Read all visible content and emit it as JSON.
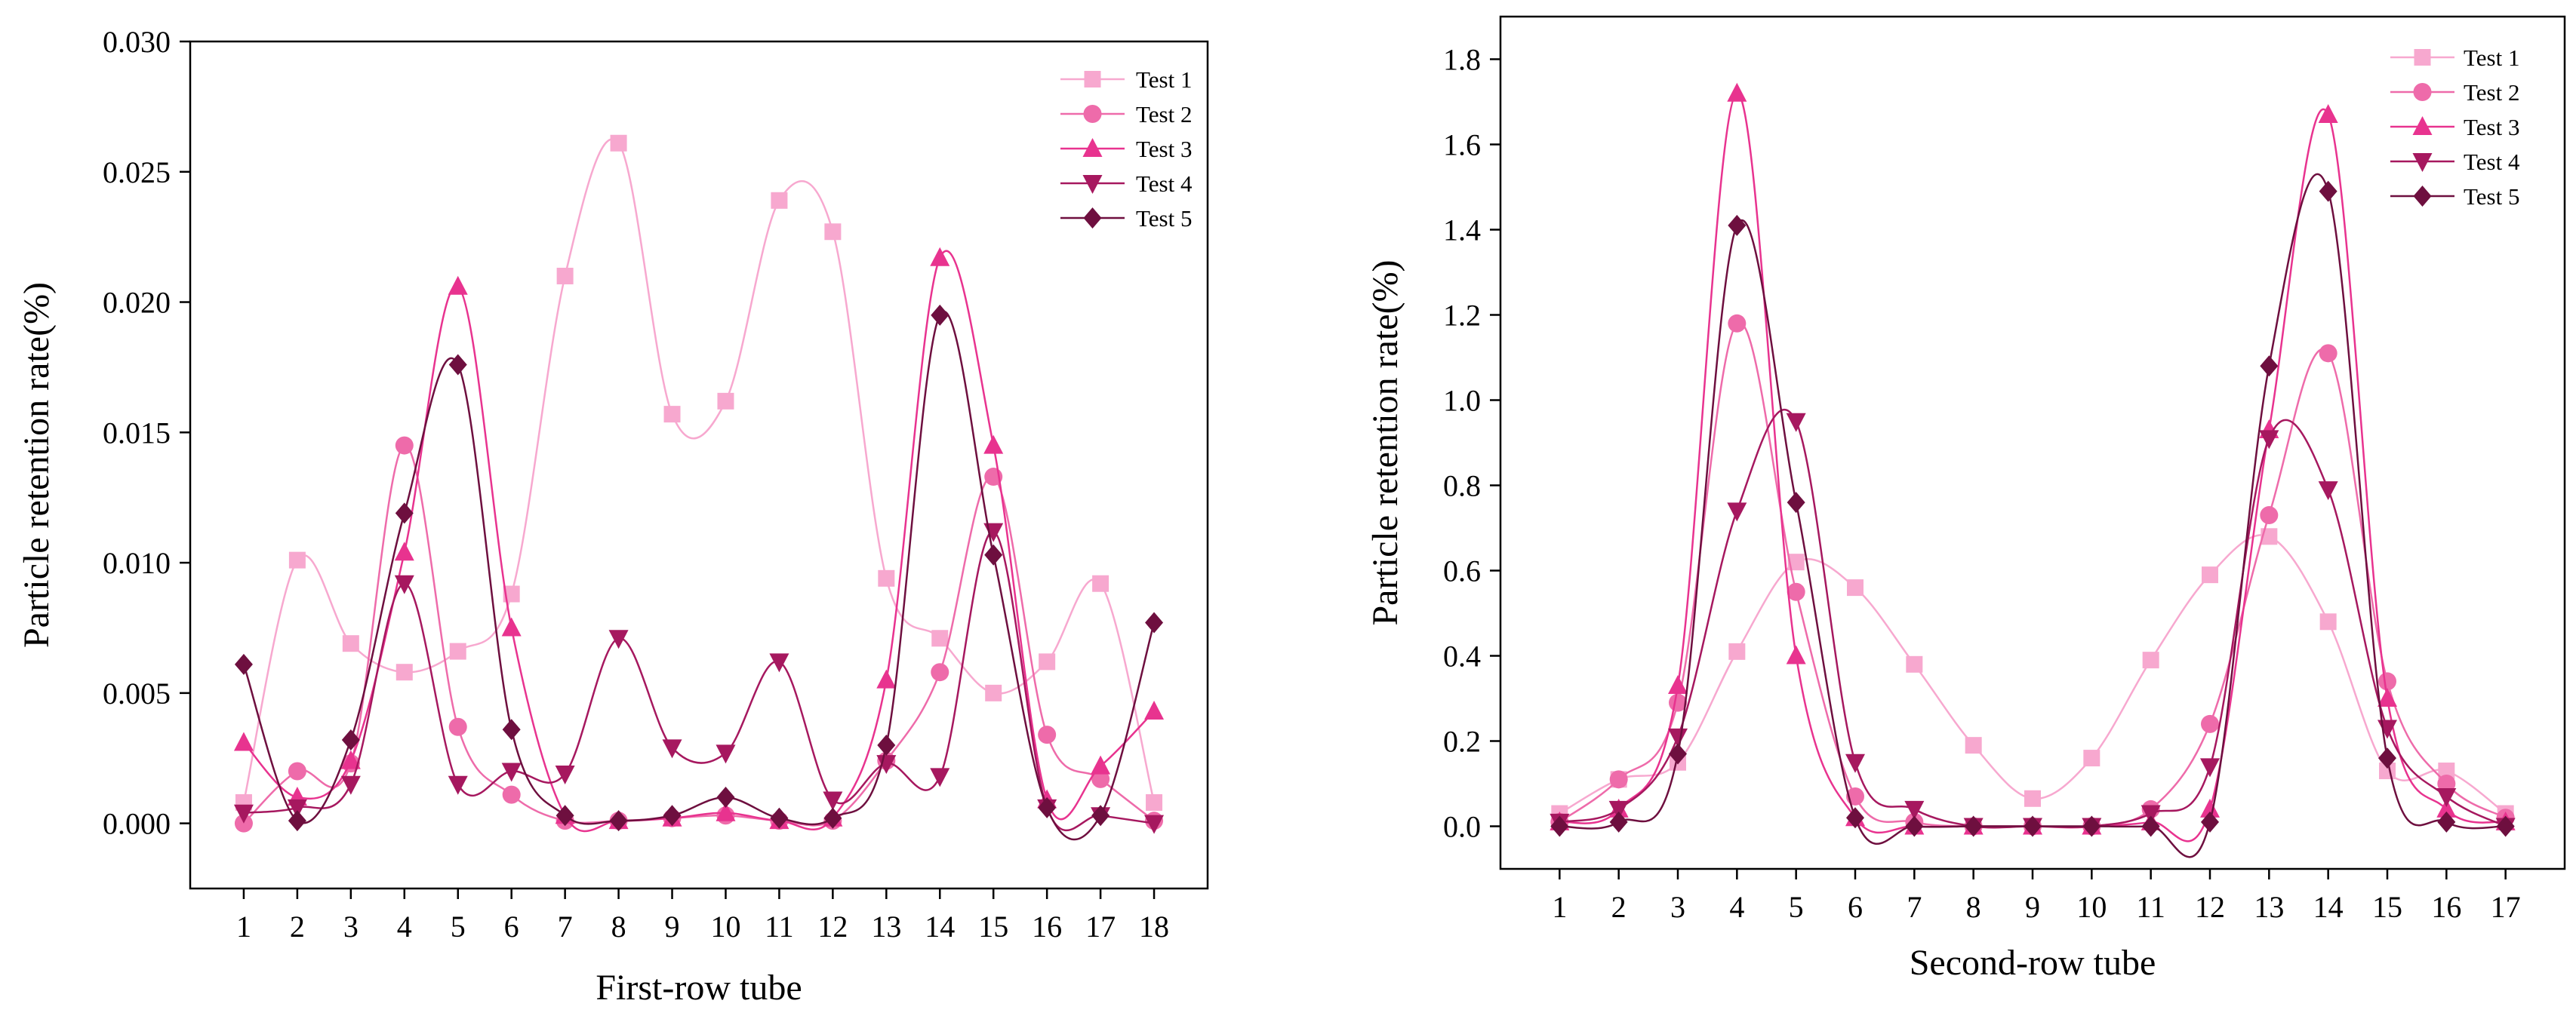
{
  "chart_data": [
    {
      "type": "line",
      "smooth": true,
      "xlabel": "First-row tube",
      "ylabel": "Particle retention rate(%)",
      "x": [
        1,
        2,
        3,
        4,
        5,
        6,
        7,
        8,
        9,
        10,
        11,
        12,
        13,
        14,
        15,
        16,
        17,
        18
      ],
      "x_tick_labels": [
        "1",
        "2",
        "3",
        "4",
        "5",
        "6",
        "7",
        "8",
        "9",
        "10",
        "11",
        "12",
        "13",
        "14",
        "15",
        "16",
        "17",
        "18"
      ],
      "xlim": [
        0,
        19
      ],
      "ylim": [
        -0.0025,
        0.03
      ],
      "y_ticks": [
        0,
        0.005,
        0.01,
        0.015,
        0.02,
        0.025,
        0.03
      ],
      "y_tick_labels": [
        "0.000",
        "0.005",
        "0.010",
        "0.015",
        "0.020",
        "0.025",
        "0.030"
      ],
      "legend_position": "top-right",
      "series": [
        {
          "name": "Test 1",
          "marker": "square",
          "color": "#F7A8CF",
          "values": [
            0.0008,
            0.0101,
            0.0069,
            0.0058,
            0.0066,
            0.0088,
            0.021,
            0.0261,
            0.0157,
            0.0162,
            0.0239,
            0.0227,
            0.0094,
            0.0071,
            0.005,
            0.0062,
            0.0092,
            0.0008
          ]
        },
        {
          "name": "Test 2",
          "marker": "circle",
          "color": "#EE6BAA",
          "values": [
            0.0,
            0.002,
            0.0023,
            0.0145,
            0.0037,
            0.0011,
            0.0001,
            0.0001,
            0.0002,
            0.0003,
            0.0001,
            0.0001,
            0.0024,
            0.0058,
            0.0133,
            0.0034,
            0.0017,
            0.0001
          ]
        },
        {
          "name": "Test 3",
          "marker": "triangle-up",
          "color": "#E8338F",
          "values": [
            0.0031,
            0.001,
            0.0024,
            0.0104,
            0.0206,
            0.0075,
            0.0003,
            0.0001,
            0.0002,
            0.0004,
            0.0001,
            0.0002,
            0.0055,
            0.0217,
            0.0145,
            0.0009,
            0.0022,
            0.0043
          ]
        },
        {
          "name": "Test 4",
          "marker": "triangle-down",
          "color": "#A6185F",
          "values": [
            0.0004,
            0.0006,
            0.0015,
            0.0092,
            0.0015,
            0.002,
            0.0019,
            0.0071,
            0.0029,
            0.0027,
            0.0062,
            0.0009,
            0.0023,
            0.0018,
            0.0112,
            0.0006,
            0.0003,
            0.0
          ]
        },
        {
          "name": "Test 5",
          "marker": "diamond",
          "color": "#6E0F3F",
          "values": [
            0.0061,
            0.0001,
            0.0032,
            0.0119,
            0.0176,
            0.0036,
            0.0003,
            0.0001,
            0.0003,
            0.001,
            0.0002,
            0.0002,
            0.003,
            0.0195,
            0.0103,
            0.0006,
            0.0003,
            0.0077
          ]
        }
      ]
    },
    {
      "type": "line",
      "smooth": true,
      "xlabel": "Second-row tube",
      "ylabel": "Particle retention rate(%)",
      "x": [
        1,
        2,
        3,
        4,
        5,
        6,
        7,
        8,
        9,
        10,
        11,
        12,
        13,
        14,
        15,
        16,
        17
      ],
      "x_tick_labels": [
        "1",
        "2",
        "3",
        "4",
        "5",
        "6",
        "7",
        "8",
        "9",
        "10",
        "11",
        "12",
        "13",
        "14",
        "15",
        "16",
        "17"
      ],
      "xlim": [
        0,
        18
      ],
      "ylim": [
        -0.1,
        1.9
      ],
      "y_ticks": [
        0,
        0.2,
        0.4,
        0.6,
        0.8,
        1.0,
        1.2,
        1.4,
        1.6,
        1.8
      ],
      "y_tick_labels": [
        "0.0",
        "0.2",
        "0.4",
        "0.6",
        "0.8",
        "1.0",
        "1.2",
        "1.4",
        "1.6",
        "1.8"
      ],
      "legend_position": "top-right",
      "series": [
        {
          "name": "Test 1",
          "marker": "square",
          "color": "#F7A8CF",
          "values": [
            0.03,
            0.11,
            0.15,
            0.41,
            0.62,
            0.56,
            0.38,
            0.19,
            0.065,
            0.16,
            0.39,
            0.59,
            0.68,
            0.48,
            0.13,
            0.13,
            0.03
          ]
        },
        {
          "name": "Test 2",
          "marker": "circle",
          "color": "#EE6BAA",
          "values": [
            0.01,
            0.11,
            0.29,
            1.18,
            0.55,
            0.07,
            0.01,
            0.0,
            0.0,
            0.0,
            0.04,
            0.24,
            0.73,
            1.11,
            0.34,
            0.1,
            0.02
          ]
        },
        {
          "name": "Test 3",
          "marker": "triangle-up",
          "color": "#E8338F",
          "values": [
            0.01,
            0.04,
            0.33,
            1.72,
            0.4,
            0.02,
            0.0,
            0.0,
            0.0,
            0.0,
            0.01,
            0.04,
            0.93,
            1.67,
            0.3,
            0.04,
            0.01
          ]
        },
        {
          "name": "Test 4",
          "marker": "triangle-down",
          "color": "#A6185F",
          "values": [
            0.01,
            0.04,
            0.21,
            0.74,
            0.95,
            0.15,
            0.04,
            0.0,
            0.0,
            0.0,
            0.03,
            0.14,
            0.91,
            0.79,
            0.23,
            0.07,
            0.0
          ]
        },
        {
          "name": "Test 5",
          "marker": "diamond",
          "color": "#6E0F3F",
          "values": [
            0.0,
            0.01,
            0.17,
            1.41,
            0.76,
            0.02,
            0.0,
            0.0,
            0.0,
            0.0,
            0.0,
            0.01,
            1.08,
            1.49,
            0.16,
            0.01,
            0.0
          ]
        }
      ]
    }
  ]
}
